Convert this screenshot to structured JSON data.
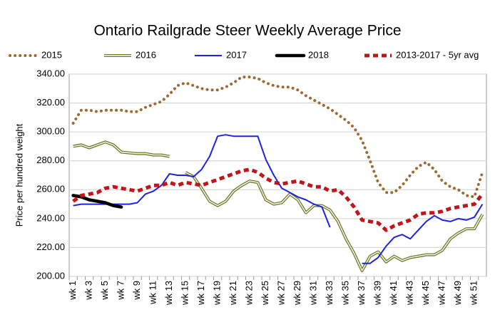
{
  "chart_data": {
    "type": "line",
    "title": "Ontario Railgrade Steer Weekly Average Price",
    "y_label": "Price per hundred weight",
    "categories": [
      "wk 1",
      null,
      "wk 3",
      null,
      "wk 5",
      null,
      "wk 7",
      null,
      "wk 9",
      null,
      "wk 11",
      null,
      "wk 13",
      null,
      "wk 15",
      null,
      "wk 17",
      null,
      "wk 19",
      null,
      "wk 21",
      null,
      "wk 23",
      null,
      "wk 25",
      null,
      "wk 27",
      null,
      "wk 29",
      null,
      "wk 31",
      null,
      "wk 33",
      null,
      "wk 35",
      null,
      "wk 37",
      null,
      "wk 39",
      null,
      "wk 41",
      null,
      "wk 43",
      null,
      "wk 45",
      null,
      "wk 47",
      null,
      "wk 49",
      null,
      "wk 51",
      null
    ],
    "ylim": [
      200,
      340
    ],
    "yticks": [
      {
        "value": 200,
        "label": "200.00"
      },
      {
        "value": 220,
        "label": "220.00"
      },
      {
        "value": 240,
        "label": "240.00"
      },
      {
        "value": 260,
        "label": "260.00"
      },
      {
        "value": 280,
        "label": "280.00"
      },
      {
        "value": 300,
        "label": "300.00"
      },
      {
        "value": 320,
        "label": "320.00"
      },
      {
        "value": 340,
        "label": "340.00"
      }
    ],
    "grid": true,
    "legend": "top",
    "series": [
      {
        "name": "2015",
        "color": "#9c6a33",
        "line_style": "dotted",
        "values": [
          306,
          315,
          315,
          314,
          315,
          315,
          315,
          314,
          314,
          317,
          319,
          321,
          326,
          332,
          334,
          332,
          330,
          329,
          329,
          331,
          334,
          338,
          338,
          337,
          334,
          332,
          331,
          331,
          329,
          325,
          322,
          319,
          316,
          312,
          308,
          303,
          294,
          280,
          265,
          258,
          258,
          263,
          270,
          276,
          279,
          274,
          266,
          262,
          260,
          256,
          255,
          272
        ]
      },
      {
        "name": "2016",
        "color": "#6b7a25",
        "line_style": "double",
        "values": [
          290,
          291,
          289,
          291,
          293,
          291,
          286,
          285.5,
          285,
          285,
          284,
          284,
          283,
          null,
          272,
          269,
          261,
          252,
          249,
          252,
          259,
          263,
          266,
          265,
          253,
          250,
          251,
          257,
          253,
          244,
          249,
          249,
          246,
          238,
          226,
          216,
          204,
          214,
          217,
          210,
          214,
          211,
          213,
          214,
          215,
          215,
          218,
          226,
          230,
          233,
          233,
          243
        ]
      },
      {
        "name": "2017",
        "color": "#1f23e0",
        "line_style": "solid",
        "values": [
          249,
          250,
          250,
          250,
          250,
          250,
          250,
          250,
          251,
          257,
          259,
          263,
          271,
          270,
          270,
          269,
          274,
          283,
          297,
          298,
          297,
          297,
          297,
          297,
          281,
          270,
          261,
          258,
          255,
          253,
          250,
          248,
          234,
          null,
          null,
          null,
          209,
          209,
          213,
          221,
          227,
          229,
          226,
          232,
          238,
          242,
          239,
          238,
          240,
          239,
          241,
          250
        ]
      },
      {
        "name": "2018",
        "color": "#000000",
        "line_style": "thick",
        "values": [
          256,
          255,
          253,
          252,
          251,
          249,
          248,
          null,
          null,
          null,
          null,
          null,
          null,
          null,
          null,
          null,
          null,
          null,
          null,
          null,
          null,
          null,
          null,
          null,
          null,
          null,
          null,
          null,
          null,
          null,
          null,
          null,
          null,
          null,
          null,
          null,
          null,
          null,
          null,
          null,
          null,
          null,
          null,
          null,
          null,
          null,
          null,
          null,
          null,
          null,
          null,
          null
        ]
      },
      {
        "name": "2013-2017 - 5yr avg",
        "color": "#c0161b",
        "line_style": "dashed",
        "values": [
          252,
          256,
          257,
          258,
          261,
          262,
          261,
          260,
          259,
          261,
          263,
          263,
          265,
          263,
          265,
          264,
          263,
          265,
          267,
          269,
          271,
          273,
          274,
          272,
          268,
          265,
          264,
          265,
          266,
          264,
          262,
          262,
          259,
          260,
          255,
          248,
          239,
          238,
          237,
          232,
          235,
          237,
          239,
          243,
          244,
          244,
          245,
          247,
          248,
          249,
          250,
          257
        ]
      }
    ]
  }
}
